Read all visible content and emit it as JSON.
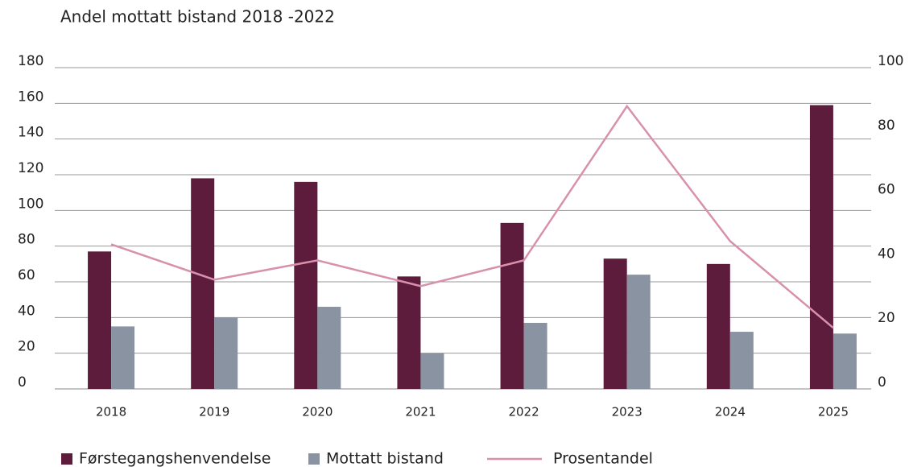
{
  "chart_data": {
    "type": "bar",
    "title": "Andel mottatt bistand 2018 -2022",
    "categories": [
      "2018",
      "2019",
      "2020",
      "2021",
      "2022",
      "2023",
      "2024",
      "2025"
    ],
    "series": [
      {
        "name": "Førstegangshenvendelse",
        "color": "#5e1c3c",
        "values": [
          77,
          118,
          116,
          63,
          93,
          73,
          70,
          159
        ]
      },
      {
        "name": "Mottatt bistand",
        "color": "#8a93a1",
        "values": [
          35,
          40,
          46,
          20,
          37,
          64,
          32,
          31
        ]
      },
      {
        "name": "Prosentandel",
        "color": "#d891ad",
        "type": "line",
        "axis": "y2",
        "values": [
          45,
          34,
          40,
          32,
          40,
          88,
          46,
          19
        ]
      }
    ],
    "ylim": [
      0,
      180
    ],
    "yticks": [
      0,
      20,
      40,
      60,
      80,
      100,
      120,
      140,
      160,
      180
    ],
    "y2lim": [
      0,
      100
    ],
    "y2ticks": [
      0,
      20,
      40,
      60,
      80,
      100
    ],
    "grid": true,
    "legend": "bottom"
  }
}
